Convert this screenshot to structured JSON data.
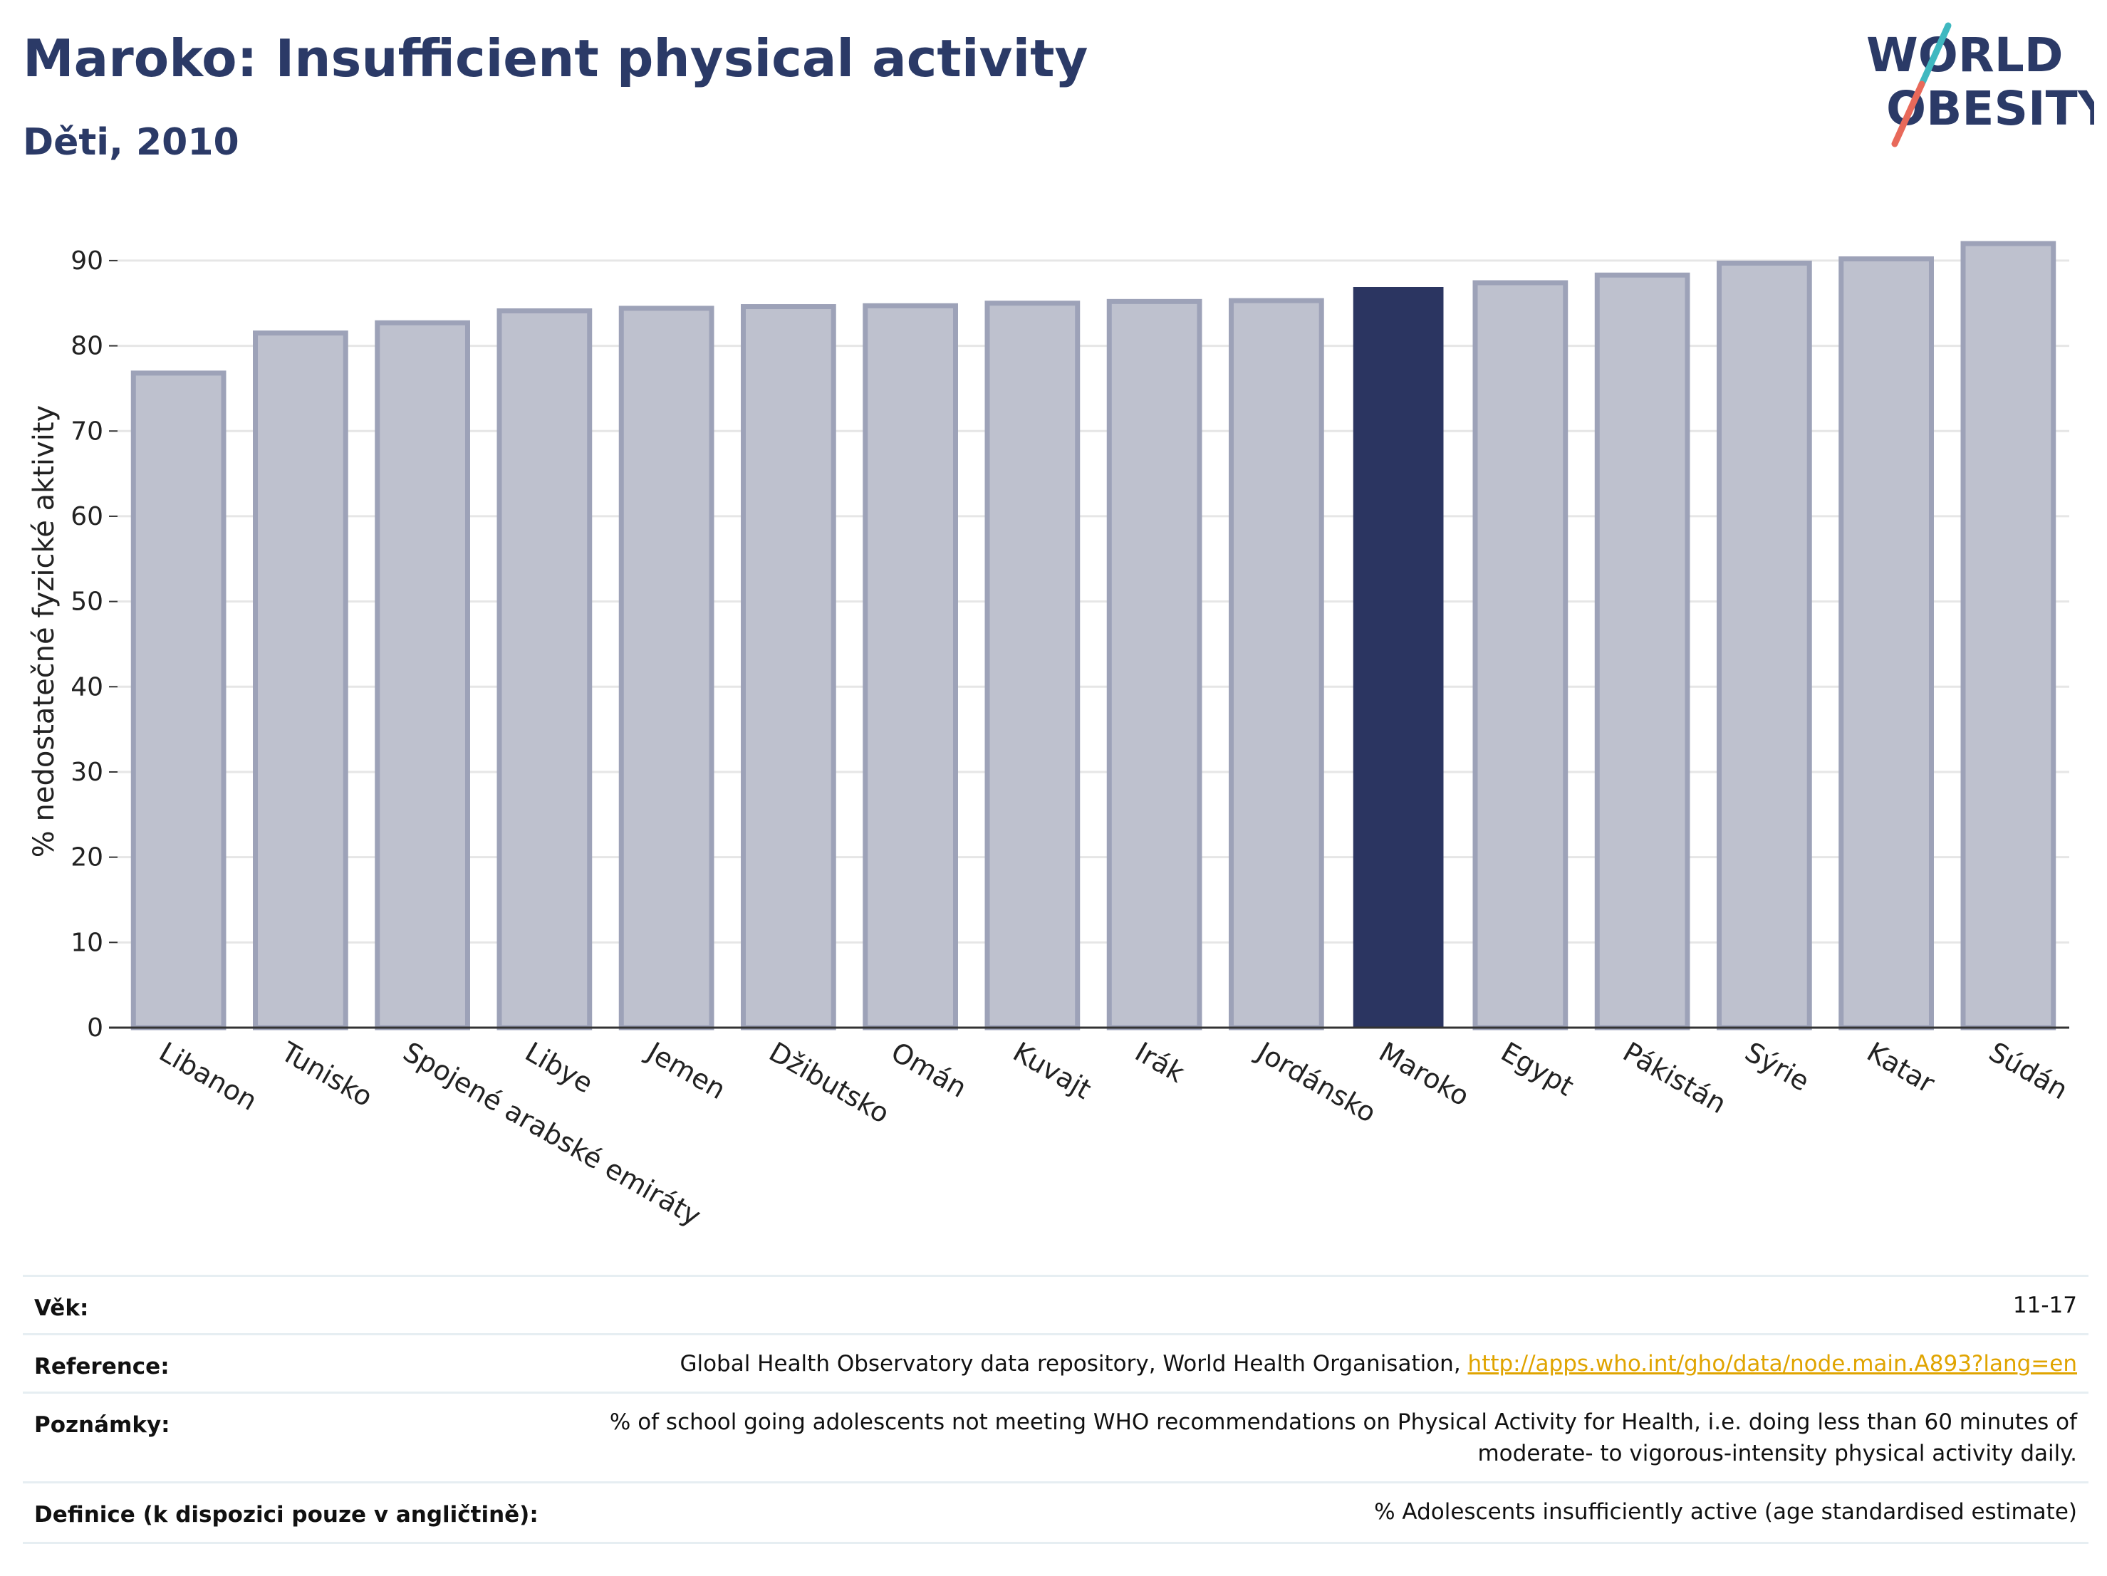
{
  "header": {
    "title": "Maroko: Insufficient physical activity",
    "subtitle": "Děti, 2010"
  },
  "logo": {
    "line1": "WORLD",
    "line2": "OBESITY"
  },
  "colors": {
    "highlight": "#2b3561",
    "bar_fill": "#bec1ce",
    "bar_stroke": "#9da2b8",
    "title": "#2b3a67",
    "logo_teal": "#3fb8c0",
    "logo_coral": "#e8695a",
    "link": "#e0a400"
  },
  "chart_data": {
    "type": "bar",
    "ylabel": "% nedostatečné fyzické aktivity",
    "xlabel": "",
    "ylim": [
      0,
      93
    ],
    "yticks": [
      0,
      10,
      20,
      30,
      40,
      50,
      60,
      70,
      80,
      90
    ],
    "grid": true,
    "categories": [
      "Libanon",
      "Tunisko",
      "Spojené arabské emiráty",
      "Libye",
      "Jemen",
      "Džibutsko",
      "Omán",
      "Kuvajt",
      "Irák",
      "Jordánsko",
      "Maroko",
      "Egypt",
      "Pákistán",
      "Sýrie",
      "Katar",
      "Súdán"
    ],
    "values": [
      76.8,
      81.5,
      82.7,
      84.1,
      84.4,
      84.6,
      84.7,
      85.0,
      85.2,
      85.3,
      86.9,
      87.4,
      88.3,
      89.7,
      90.2,
      92.0
    ],
    "highlight": "Maroko"
  },
  "info": {
    "age_label": "Věk:",
    "age_value": "11-17",
    "reference_label": "Reference:",
    "reference_text": "Global Health Observatory data repository, World Health Organisation, ",
    "reference_link": "http://apps.who.int/gho/data/node.main.A893?lang=en",
    "notes_label": "Poznámky:",
    "notes_line1": "% of school going adolescents not meeting WHO recommendations on Physical Activity for Health, i.e. doing less than 60 minutes of",
    "notes_line2": "moderate- to vigorous-intensity physical activity daily.",
    "definition_label": "Definice (k dispozici pouze v angličtině):",
    "definition_value": "% Adolescents insufficiently active (age standardised estimate)"
  }
}
